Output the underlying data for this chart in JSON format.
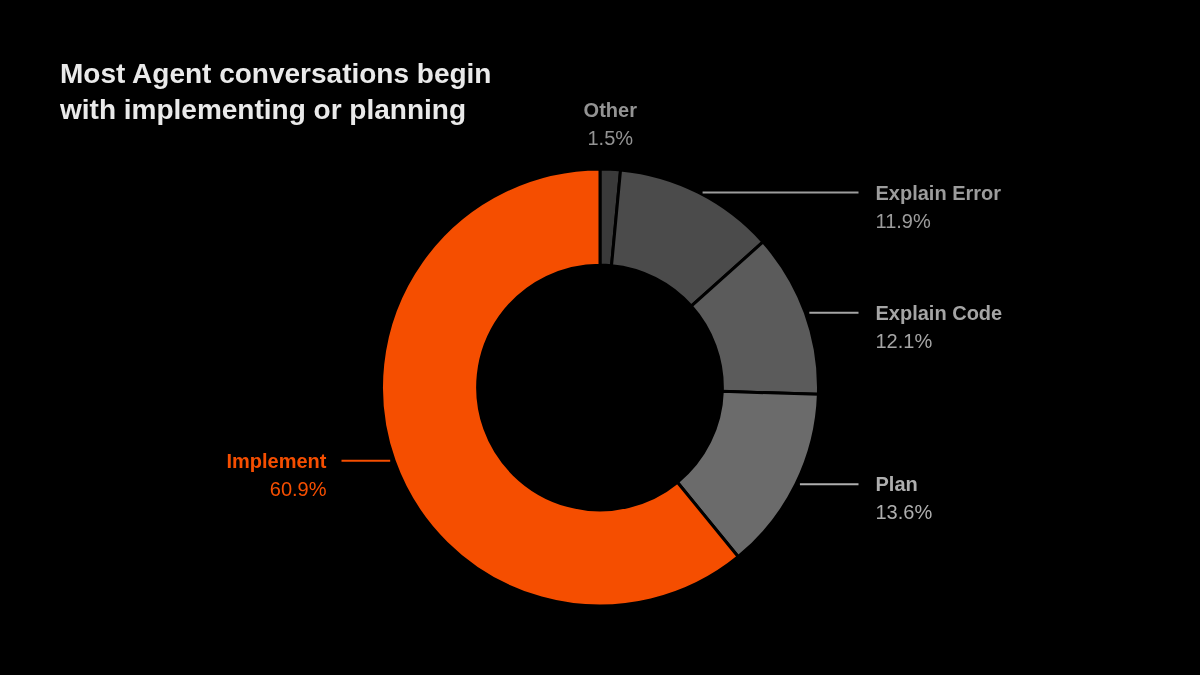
{
  "chart_data": {
    "type": "donut",
    "title": "Most Agent conversations begin\nwith implementing or planning",
    "categories": [
      "Other",
      "Explain Error",
      "Explain Code",
      "Plan",
      "Implement"
    ],
    "values": [
      1.5,
      11.9,
      12.1,
      13.6,
      60.9
    ],
    "colors": [
      "#3a3a3a",
      "#4b4b4b",
      "#5b5b5b",
      "#6b6b6b",
      "#f54e00"
    ],
    "value_labels": [
      "1.5%",
      "11.9%",
      "12.1%",
      "13.6%",
      "60.9%"
    ],
    "legend": false
  }
}
